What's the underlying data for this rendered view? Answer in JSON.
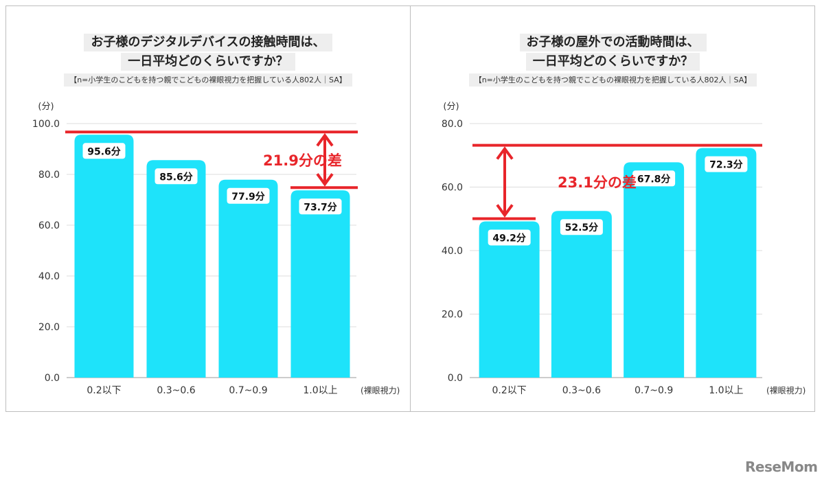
{
  "charts": [
    {
      "title_line1": "お子様のデジタルデバイスの接触時間は、",
      "title_line2": "一日平均どのくらいですか？",
      "subtitle": "【n=小学生のこどもを持つ親でこどもの裸眼視力を把握している人802人｜SA】"
    },
    {
      "title_line1": "お子様の屋外での活動時間は、",
      "title_line2": "一日平均どのくらいですか？",
      "subtitle": "【n=小学生のこどもを持つ親でこどもの裸眼視力を把握している人802人｜SA】"
    }
  ],
  "chart_data": [
    {
      "type": "bar",
      "title": "お子様のデジタルデバイスの接触時間は、一日平均どのくらいですか？",
      "subtitle": "【n=小学生のこどもを持つ親でこどもの裸眼視力を把握している人802人｜SA】",
      "ylabel": "(分)",
      "xlabel": "(裸眼視力)",
      "categories": [
        "0.2以下",
        "0.3~0.6",
        "0.7~0.9",
        "1.0以上"
      ],
      "values": [
        95.6,
        85.6,
        77.9,
        73.7
      ],
      "data_labels": [
        "95.6分",
        "85.6分",
        "77.9分",
        "73.7分"
      ],
      "ylim": [
        0,
        100
      ],
      "yticks": [
        0,
        20,
        40,
        60,
        80,
        100
      ],
      "ytick_labels": [
        "0.0",
        "20.0",
        "40.0",
        "60.0",
        "80.0",
        "100.0"
      ],
      "bar_color": "#1ee3fa",
      "annotation": {
        "text": "21.9分の差",
        "high_value": 95.6,
        "low_value": 73.7,
        "color": "#e8252a"
      }
    },
    {
      "type": "bar",
      "title": "お子様の屋外での活動時間は、一日平均どのくらいですか？",
      "subtitle": "【n=小学生のこどもを持つ親でこどもの裸眼視力を把握している人802人｜SA】",
      "ylabel": "(分)",
      "xlabel": "(裸眼視力)",
      "categories": [
        "0.2以下",
        "0.3~0.6",
        "0.7~0.9",
        "1.0以上"
      ],
      "values": [
        49.2,
        52.5,
        67.8,
        72.3
      ],
      "data_labels": [
        "49.2分",
        "52.5分",
        "67.8分",
        "72.3分"
      ],
      "ylim": [
        0,
        80
      ],
      "yticks": [
        0,
        20,
        40,
        60,
        80
      ],
      "ytick_labels": [
        "0.0",
        "20.0",
        "40.0",
        "60.0",
        "80.0"
      ],
      "bar_color": "#1ee3fa",
      "annotation": {
        "text": "23.1分の差",
        "high_value": 72.3,
        "low_value": 49.2,
        "color": "#e8252a"
      }
    }
  ],
  "logo": "ReseMom"
}
